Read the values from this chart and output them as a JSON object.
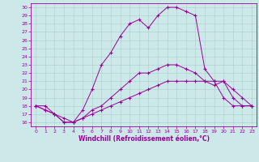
{
  "xlabel": "Windchill (Refroidissement éolien,°C)",
  "bg_color": "#cce8e8",
  "line_color": "#990099",
  "grid_color": "#aacccc",
  "xlim": [
    -0.5,
    23.5
  ],
  "ylim": [
    15.5,
    30.5
  ],
  "yticks": [
    16,
    17,
    18,
    19,
    20,
    21,
    22,
    23,
    24,
    25,
    26,
    27,
    28,
    29,
    30
  ],
  "xticks": [
    0,
    1,
    2,
    3,
    4,
    5,
    6,
    7,
    8,
    9,
    10,
    11,
    12,
    13,
    14,
    15,
    16,
    17,
    18,
    19,
    20,
    21,
    22,
    23
  ],
  "line1_x": [
    0,
    1,
    2,
    3,
    4,
    5,
    6,
    7,
    8,
    9,
    10,
    11,
    12,
    13,
    14,
    15,
    16,
    17,
    18,
    19,
    20,
    21,
    22,
    23
  ],
  "line1_y": [
    18,
    18,
    17,
    16,
    16,
    17.5,
    20,
    23,
    24.5,
    26.5,
    28,
    28.5,
    27.5,
    29,
    30,
    30,
    29.5,
    29,
    22.5,
    21,
    19,
    18,
    18,
    18
  ],
  "line2_x": [
    0,
    1,
    2,
    3,
    4,
    5,
    6,
    7,
    8,
    9,
    10,
    11,
    12,
    13,
    14,
    15,
    16,
    17,
    18,
    19,
    20,
    21,
    22,
    23
  ],
  "line2_y": [
    18,
    17.5,
    17,
    16,
    16,
    16.5,
    17.5,
    18,
    19,
    20,
    21,
    22,
    22,
    22.5,
    23,
    23,
    22.5,
    22,
    21,
    20.5,
    21,
    19,
    18,
    18
  ],
  "line3_x": [
    0,
    1,
    2,
    3,
    4,
    5,
    6,
    7,
    8,
    9,
    10,
    11,
    12,
    13,
    14,
    15,
    16,
    17,
    18,
    19,
    20,
    21,
    22,
    23
  ],
  "line3_y": [
    18,
    17.5,
    17,
    16.5,
    16,
    16.5,
    17,
    17.5,
    18,
    18.5,
    19,
    19.5,
    20,
    20.5,
    21,
    21,
    21,
    21,
    21,
    21,
    21,
    20,
    19,
    18
  ],
  "tick_fontsize": 4.5,
  "xlabel_fontsize": 5.5,
  "marker_size": 3,
  "linewidth": 0.7
}
